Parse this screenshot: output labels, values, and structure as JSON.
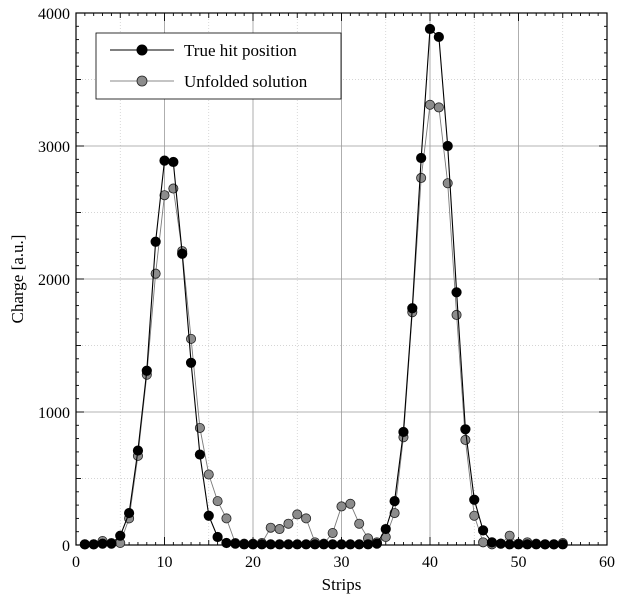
{
  "chart_data": {
    "type": "line",
    "title": "",
    "xlabel": "Strips",
    "ylabel": "Charge [a.u.]",
    "xlim": [
      0,
      60
    ],
    "ylim": [
      0,
      4000
    ],
    "xticks": [
      0,
      10,
      20,
      30,
      40,
      50,
      60
    ],
    "yticks": [
      0,
      1000,
      2000,
      3000,
      4000
    ],
    "x_tick_labels": [
      "0",
      "10",
      "20",
      "30",
      "40",
      "50",
      "60"
    ],
    "y_tick_labels": [
      "0",
      "1000",
      "2000",
      "3000",
      "4000"
    ],
    "grid": true,
    "legend_position": "top-left",
    "series": [
      {
        "name": "True hit position",
        "marker": "filled-circle",
        "color": "#000000",
        "x": [
          1,
          2,
          3,
          4,
          5,
          6,
          7,
          8,
          9,
          10,
          11,
          12,
          13,
          14,
          15,
          16,
          17,
          18,
          19,
          20,
          21,
          22,
          23,
          24,
          25,
          26,
          27,
          28,
          29,
          30,
          31,
          32,
          33,
          34,
          35,
          36,
          37,
          38,
          39,
          40,
          41,
          42,
          43,
          44,
          45,
          46,
          47,
          48,
          49,
          50,
          51,
          52,
          53,
          54,
          55
        ],
        "values": [
          5,
          5,
          10,
          10,
          70,
          240,
          710,
          1310,
          2280,
          2890,
          2880,
          2190,
          1370,
          680,
          220,
          60,
          15,
          10,
          5,
          5,
          5,
          5,
          5,
          5,
          5,
          5,
          5,
          5,
          5,
          5,
          5,
          5,
          5,
          10,
          120,
          330,
          850,
          1780,
          2910,
          3880,
          3820,
          3000,
          1900,
          870,
          340,
          110,
          20,
          10,
          5,
          5,
          5,
          5,
          5,
          5,
          5
        ]
      },
      {
        "name": "Unfolded solution",
        "marker": "gray-circle",
        "color": "#888888",
        "x": [
          1,
          2,
          3,
          4,
          5,
          6,
          7,
          8,
          9,
          10,
          11,
          12,
          13,
          14,
          15,
          16,
          17,
          18,
          19,
          20,
          21,
          22,
          23,
          24,
          25,
          26,
          27,
          28,
          29,
          30,
          31,
          32,
          33,
          34,
          35,
          36,
          37,
          38,
          39,
          40,
          41,
          42,
          43,
          44,
          45,
          46,
          47,
          48,
          49,
          50,
          51,
          52,
          53,
          54,
          55
        ],
        "values": [
          5,
          5,
          30,
          15,
          15,
          200,
          670,
          1280,
          2040,
          2630,
          2680,
          2210,
          1550,
          880,
          530,
          330,
          200,
          15,
          10,
          10,
          15,
          130,
          120,
          160,
          230,
          200,
          20,
          10,
          90,
          290,
          310,
          160,
          50,
          20,
          60,
          240,
          810,
          1750,
          2760,
          3310,
          3290,
          2720,
          1730,
          790,
          220,
          20,
          5,
          10,
          70,
          10,
          20,
          10,
          5,
          5,
          15
        ]
      }
    ]
  }
}
